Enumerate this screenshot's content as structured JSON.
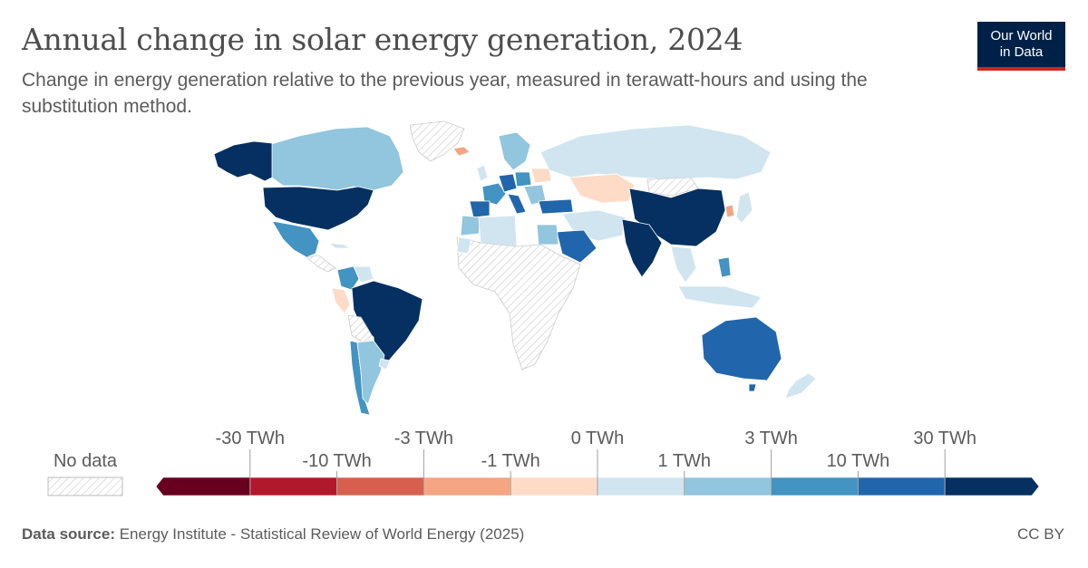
{
  "header": {
    "title": "Annual change in solar energy generation, 2024",
    "subtitle": "Change in energy generation relative to the previous year, measured in terawatt-hours and using the substitution method."
  },
  "logo": {
    "line1": "Our World",
    "line2": "in Data"
  },
  "legend": {
    "no_data_label": "No data",
    "colors": [
      "#67001f",
      "#b2182b",
      "#d6604d",
      "#f4a582",
      "#fddbc7",
      "#d1e5f0",
      "#92c5de",
      "#4393c3",
      "#2166ac",
      "#053061"
    ],
    "no_data_color": "#eeeeee",
    "thresholds": [
      {
        "label": "-30 TWh",
        "row": "top"
      },
      {
        "label": "-10 TWh",
        "row": "bottom"
      },
      {
        "label": "-3 TWh",
        "row": "top"
      },
      {
        "label": "-1 TWh",
        "row": "bottom"
      },
      {
        "label": "0 TWh",
        "row": "top"
      },
      {
        "label": "1 TWh",
        "row": "bottom"
      },
      {
        "label": "3 TWh",
        "row": "top"
      },
      {
        "label": "10 TWh",
        "row": "bottom"
      },
      {
        "label": "30 TWh",
        "row": "top"
      }
    ]
  },
  "footer": {
    "source_label": "Data source:",
    "source_text": "Energy Institute - Statistical Review of World Energy (2025)",
    "license": "CC BY"
  }
}
